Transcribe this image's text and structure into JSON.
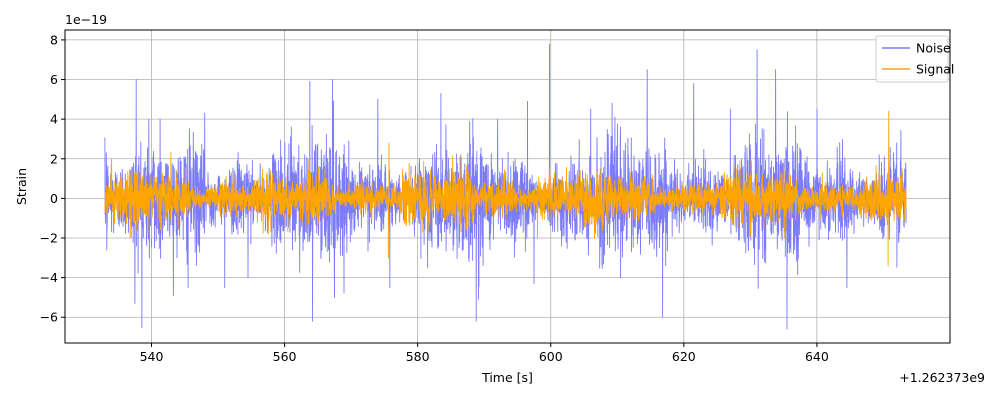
{
  "chart_data": {
    "type": "line",
    "title": "",
    "xlabel": "Time [s]",
    "ylabel": "Strain",
    "x_offset_label": "+1.262373e9",
    "y_scale_label": "1e−19",
    "xlim": [
      527,
      660
    ],
    "ylim": [
      -7.3,
      8.5
    ],
    "x_range": [
      533,
      653.4
    ],
    "x_ticks": [
      540,
      560,
      580,
      600,
      620,
      640
    ],
    "x_tick_labels": [
      "540",
      "560",
      "580",
      "600",
      "620",
      "640"
    ],
    "y_ticks": [
      -6,
      -4,
      -2,
      0,
      2,
      4,
      6,
      8
    ],
    "y_tick_labels": [
      "−6",
      "−4",
      "−2",
      "0",
      "2",
      "4",
      "6",
      "8"
    ],
    "grid": true,
    "legend_position": "upper-right",
    "series": [
      {
        "name": "Noise",
        "color": "#7b7bfb",
        "std": 1.1,
        "peaks": [
          {
            "x": 533.2,
            "y": 2.3
          },
          {
            "x": 533.3,
            "y": -2.6
          },
          {
            "x": 537.7,
            "y": 6.0
          },
          {
            "x": 537.5,
            "y": -5.3
          },
          {
            "x": 541.3,
            "y": 4.0
          },
          {
            "x": 545.5,
            "y": -4.5
          },
          {
            "x": 548.0,
            "y": 4.3
          },
          {
            "x": 551.0,
            "y": -4.5
          },
          {
            "x": 554.5,
            "y": -4.0
          },
          {
            "x": 561.0,
            "y": 3.6
          },
          {
            "x": 563.8,
            "y": 5.9
          },
          {
            "x": 564.2,
            "y": -6.2
          },
          {
            "x": 567.2,
            "y": 6.0
          },
          {
            "x": 567.5,
            "y": -5.0
          },
          {
            "x": 574.0,
            "y": 5.0
          },
          {
            "x": 575.8,
            "y": -4.5
          },
          {
            "x": 583.5,
            "y": 5.3
          },
          {
            "x": 588.8,
            "y": -6.2
          },
          {
            "x": 592.0,
            "y": 4.0
          },
          {
            "x": 596.5,
            "y": 4.9
          },
          {
            "x": 599.8,
            "y": 7.8
          },
          {
            "x": 597.5,
            "y": -4.3
          },
          {
            "x": 606.0,
            "y": 4.5
          },
          {
            "x": 609.2,
            "y": 4.8
          },
          {
            "x": 610.5,
            "y": -4.0
          },
          {
            "x": 614.5,
            "y": 6.5
          },
          {
            "x": 616.8,
            "y": -6.0
          },
          {
            "x": 621.5,
            "y": 5.8
          },
          {
            "x": 627.0,
            "y": 4.5
          },
          {
            "x": 631.0,
            "y": 7.5
          },
          {
            "x": 633.8,
            "y": 6.5
          },
          {
            "x": 635.5,
            "y": -6.6
          },
          {
            "x": 640.0,
            "y": 4.5
          },
          {
            "x": 644.5,
            "y": -4.5
          },
          {
            "x": 652.0,
            "y": 2.8
          }
        ]
      },
      {
        "name": "Signal",
        "color": "#ffa500",
        "std": 0.5,
        "peaks": [
          {
            "x": 534.0,
            "y": 2.0
          },
          {
            "x": 540.0,
            "y": -2.0
          },
          {
            "x": 563.5,
            "y": 2.0
          },
          {
            "x": 575.7,
            "y": 2.8
          },
          {
            "x": 575.6,
            "y": -3.0
          },
          {
            "x": 598.0,
            "y": -2.0
          },
          {
            "x": 630.0,
            "y": -1.9
          },
          {
            "x": 650.8,
            "y": 4.4
          },
          {
            "x": 650.7,
            "y": -3.4
          }
        ]
      }
    ]
  }
}
